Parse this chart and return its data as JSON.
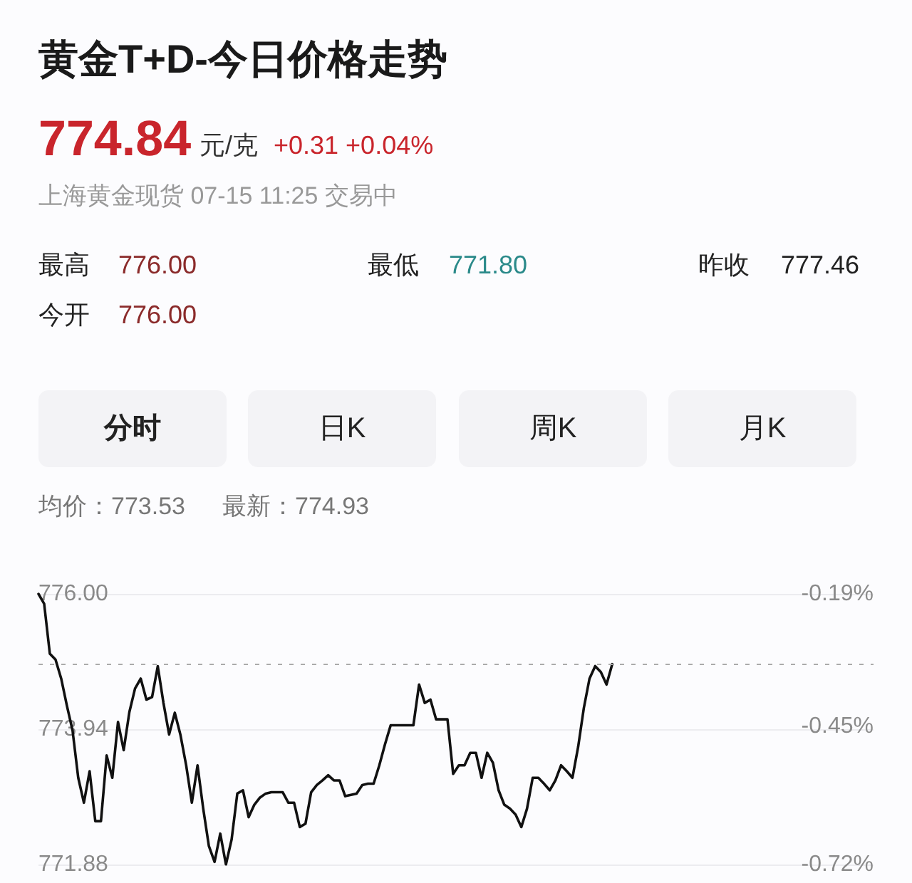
{
  "chart_data": {
    "type": "line",
    "title": "黄金T+D-今日价格走势",
    "annotations": [
      "774.84",
      "元/克",
      "+0.31 +0.04%",
      "上海黄金现货 07-15 11:25 交易中",
      "最高",
      "776.00",
      "最低",
      "771.80",
      "昨收",
      "777.46",
      "今开",
      "776.00",
      "分时",
      "日K",
      "周K",
      "月K",
      "均价：773.53",
      "最新：774.93"
    ],
    "categories": [
      null,
      null,
      null,
      null,
      null,
      null,
      null,
      null,
      null,
      null,
      null,
      null,
      null,
      null,
      null,
      null,
      null,
      null,
      null,
      null,
      null,
      null,
      null,
      null,
      null,
      null,
      null,
      null,
      null,
      null,
      null,
      null,
      null,
      null,
      null,
      null,
      null,
      null,
      null,
      null,
      null,
      null,
      null,
      null,
      null,
      null,
      null,
      null,
      null,
      null,
      null,
      null,
      null,
      null,
      null,
      null,
      null,
      null,
      null,
      null,
      null,
      null,
      null,
      null,
      null,
      null,
      null,
      null,
      null,
      null,
      null,
      null,
      null,
      null,
      null,
      null,
      null,
      null,
      null,
      null,
      null,
      null,
      null,
      null,
      null,
      null,
      null,
      null,
      null,
      null,
      null,
      null,
      null,
      null,
      null,
      null,
      null,
      null,
      null,
      null,
      null,
      null,
      null,
      null,
      null,
      null,
      null,
      null,
      null,
      null,
      null,
      null,
      null,
      null,
      null,
      null,
      null,
      null,
      null,
      null,
      null,
      null,
      null,
      null,
      null,
      null,
      null,
      null,
      null,
      null,
      null,
      null,
      null,
      null,
      null,
      null,
      null,
      null,
      null,
      null,
      null,
      null,
      null,
      null,
      null,
      null,
      null,
      null
    ],
    "values": [
      776.0,
      775.85,
      775.09,
      775.0,
      774.71,
      774.3,
      773.92,
      773.2,
      772.82,
      773.3,
      772.54,
      772.54,
      773.54,
      773.2,
      774.05,
      773.62,
      774.2,
      774.56,
      774.71,
      774.39,
      774.43,
      774.9,
      774.34,
      773.86,
      774.19,
      773.85,
      773.39,
      772.82,
      773.39,
      772.73,
      772.16,
      771.92,
      772.35,
      771.88,
      772.26,
      772.96,
      773.01,
      772.6,
      772.79,
      772.9,
      772.96,
      772.98,
      772.98,
      772.98,
      772.82,
      772.82,
      772.45,
      772.5,
      772.98,
      773.09,
      773.16,
      773.24,
      773.16,
      773.16,
      772.92,
      772.94,
      772.96,
      773.09,
      773.11,
      773.11,
      773.39,
      773.71,
      774.0,
      774.0,
      774.0,
      774.0,
      774.0,
      774.62,
      774.34,
      774.39,
      774.09,
      774.09,
      774.09,
      773.26,
      773.39,
      773.39,
      773.58,
      773.58,
      773.2,
      773.58,
      773.43,
      773.01,
      772.79,
      772.73,
      772.64,
      772.45,
      772.73,
      773.2,
      773.2,
      773.11,
      773.01,
      773.16,
      773.39,
      773.3,
      773.2,
      773.67,
      774.26,
      774.71,
      774.9,
      774.81,
      774.62,
      774.93,
      null,
      null,
      null,
      null,
      null,
      null,
      null,
      null,
      null,
      null,
      null,
      null,
      null,
      null,
      null,
      null,
      null,
      null,
      null,
      null,
      null,
      null,
      null,
      null,
      null,
      null,
      null,
      null,
      null,
      null,
      null,
      null,
      null,
      null,
      null,
      null,
      null,
      null,
      null,
      null,
      null,
      null,
      null,
      null,
      null,
      null
    ],
    "color": "#111111",
    "ylim": [
      771.88,
      776.0
    ],
    "yticks": [
      {
        "value": 776.0,
        "label": "776.00"
      },
      773.94,
      771.88
    ],
    "y2lim": [
      -0.72,
      -0.19
    ],
    "y2ticks": [
      {
        "value": -0.19,
        "label": "-0.19%"
      },
      {
        "value": -0.45,
        "label": "-0.45%"
      },
      {
        "value": -0.72,
        "label": "-0.72%"
      }
    ],
    "ref_lines": [
      {
        "axis": "y",
        "value": 774.93,
        "color": "#aaaaaa",
        "line_style": "dashed"
      }
    ],
    "grid": "y",
    "marker": "none",
    "tick_labels": "y"
  }
}
